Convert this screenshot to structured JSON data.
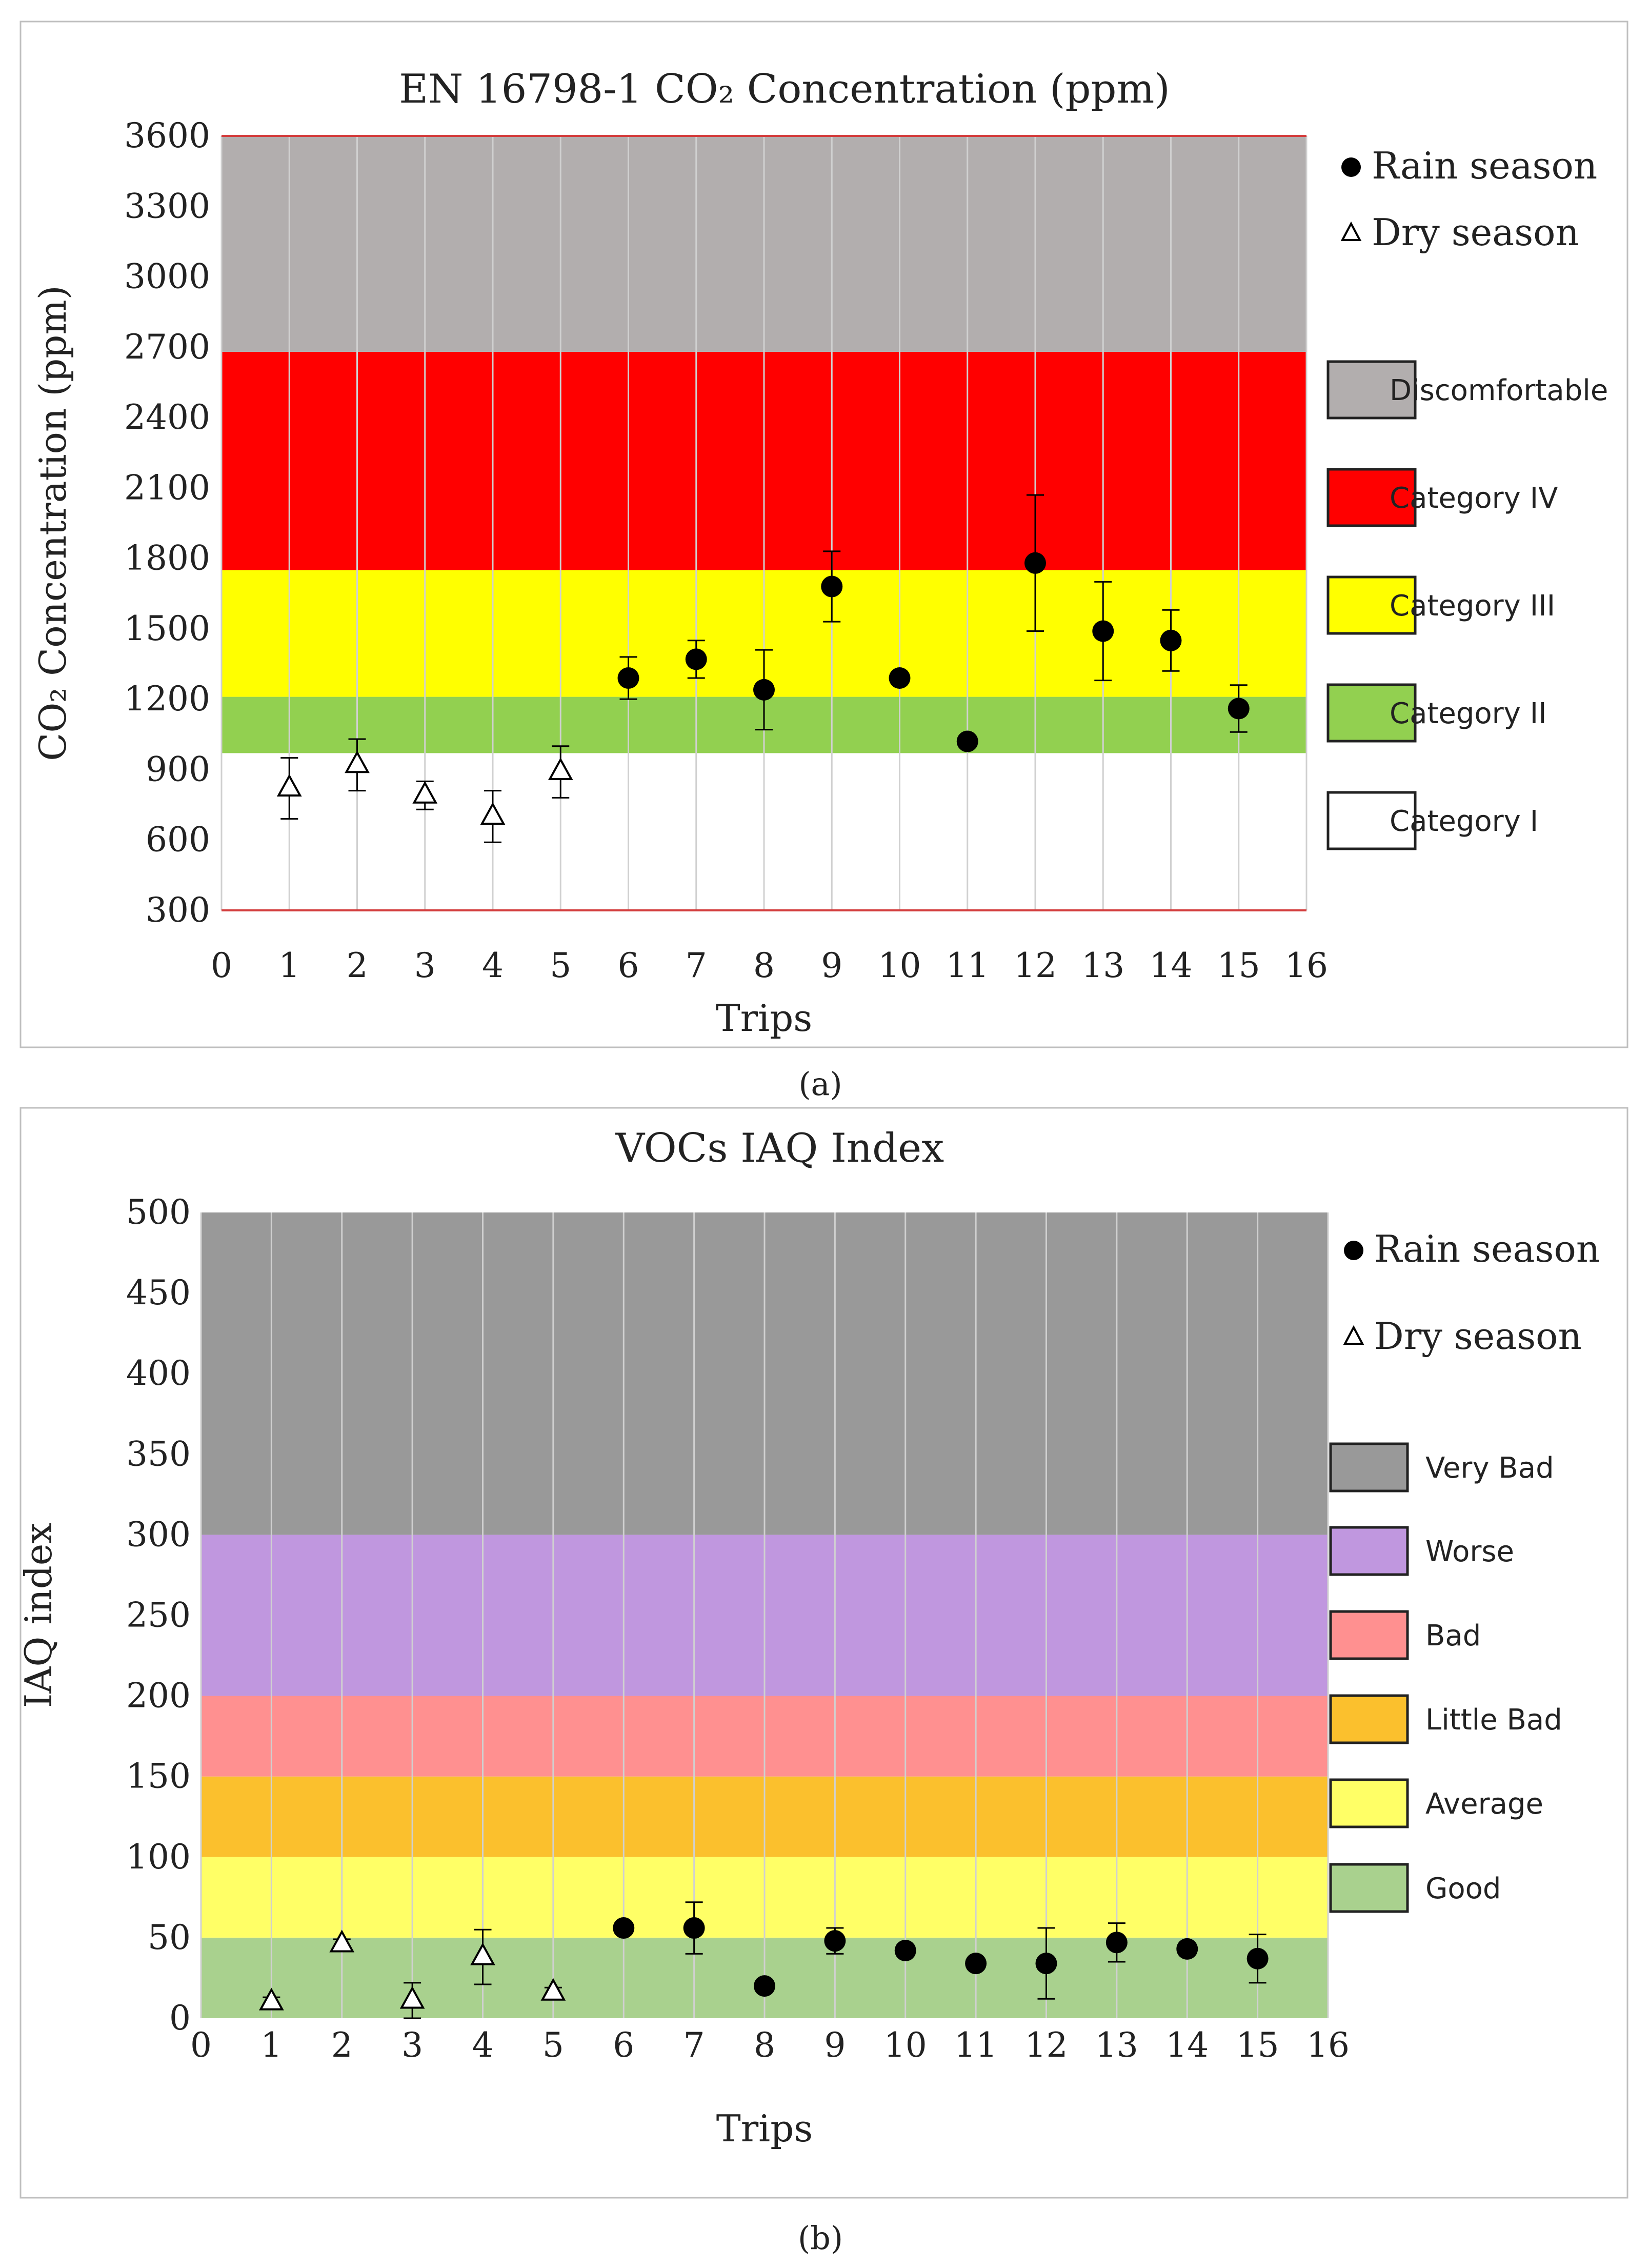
{
  "colors": {
    "rain_marker": "#000000",
    "dry_marker": "#ffffff",
    "grid": "#d0d0d0"
  },
  "chart_data": [
    {
      "panel_label": "(a)",
      "type": "scatter",
      "title": "EN 16798-1 CO₂ Concentration (ppm)",
      "xlabel": "Trips",
      "ylabel": "CO₂ Concentration (ppm)",
      "xlim": [
        0,
        16
      ],
      "ylim": [
        300,
        3600
      ],
      "xticks": [
        0,
        1,
        2,
        3,
        4,
        5,
        6,
        7,
        8,
        9,
        10,
        11,
        12,
        13,
        14,
        15,
        16
      ],
      "yticks": [
        300,
        600,
        900,
        1200,
        1500,
        1800,
        2100,
        2400,
        2700,
        3000,
        3300,
        3600
      ],
      "grid": "vertical",
      "legend_position": "right",
      "bands": [
        {
          "label": "Category I",
          "from": 300,
          "to": 970,
          "color": "#ffffff"
        },
        {
          "label": "Category II",
          "from": 970,
          "to": 1210,
          "color": "#92d050"
        },
        {
          "label": "Category III",
          "from": 1210,
          "to": 1750,
          "color": "#ffff00"
        },
        {
          "label": "Category IV",
          "from": 1750,
          "to": 2680,
          "color": "#ff0000"
        },
        {
          "label": "Discomfortable",
          "from": 2680,
          "to": 3600,
          "color": "#b2aeae"
        }
      ],
      "series": [
        {
          "name": "Rain season",
          "marker": "circle",
          "x": [
            6,
            7,
            8,
            9,
            10,
            11,
            12,
            13,
            14,
            15
          ],
          "y": [
            1290,
            1370,
            1240,
            1680,
            1290,
            1020,
            1780,
            1490,
            1450,
            1160
          ],
          "err": [
            90,
            80,
            170,
            150,
            0,
            0,
            290,
            210,
            130,
            100
          ]
        },
        {
          "name": "Dry season",
          "marker": "triangle",
          "x": [
            1,
            2,
            3,
            4,
            5
          ],
          "y": [
            820,
            920,
            790,
            700,
            890
          ],
          "err": [
            130,
            110,
            60,
            110,
            110
          ]
        }
      ]
    },
    {
      "panel_label": "(b)",
      "type": "scatter",
      "title": "VOCs IAQ  Index",
      "xlabel": "Trips",
      "ylabel": "IAQ index",
      "xlim": [
        0,
        16
      ],
      "ylim": [
        0,
        500
      ],
      "xticks": [
        0,
        1,
        2,
        3,
        4,
        5,
        6,
        7,
        8,
        9,
        10,
        11,
        12,
        13,
        14,
        15,
        16
      ],
      "yticks": [
        0,
        50,
        100,
        150,
        200,
        250,
        300,
        350,
        400,
        450,
        500
      ],
      "grid": "vertical",
      "legend_position": "right",
      "bands": [
        {
          "label": "Good",
          "from": 0,
          "to": 50,
          "color": "#a9d18e"
        },
        {
          "label": "Average",
          "from": 50,
          "to": 100,
          "color": "#ffff66"
        },
        {
          "label": "Little Bad",
          "from": 100,
          "to": 150,
          "color": "#fbc02d"
        },
        {
          "label": "Bad",
          "from": 150,
          "to": 200,
          "color": "#ff9090"
        },
        {
          "label": "Worse",
          "from": 200,
          "to": 300,
          "color": "#c097df"
        },
        {
          "label": "Very Bad",
          "from": 300,
          "to": 500,
          "color": "#999999"
        }
      ],
      "series": [
        {
          "name": "Rain season",
          "marker": "circle",
          "x": [
            6,
            7,
            8,
            9,
            10,
            11,
            12,
            13,
            14,
            15
          ],
          "y": [
            56,
            56,
            20,
            48,
            42,
            34,
            34,
            47,
            43,
            37
          ],
          "err": [
            0,
            16,
            0,
            8,
            0,
            0,
            22,
            12,
            0,
            15
          ]
        },
        {
          "name": "Dry season",
          "marker": "triangle",
          "x": [
            1,
            2,
            3,
            4,
            5
          ],
          "y": [
            10,
            46,
            11,
            38,
            16
          ],
          "err": [
            3,
            3,
            11,
            17,
            3
          ]
        }
      ]
    }
  ]
}
